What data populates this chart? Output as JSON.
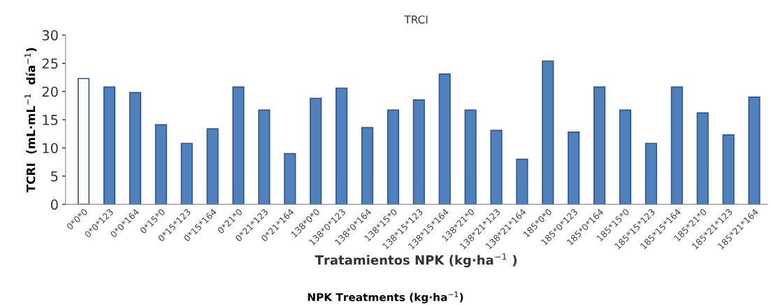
{
  "chart_data": {
    "type": "bar",
    "title": "TRCI",
    "xlabel": "Tratamientos NPK (kg·ha$^{−1}$ )",
    "ylabel": "TCRI  (mL·mL$^{−1}$  día$^{−1}$)",
    "annotations": [
      "NPK Treatments (kg·ha$^{−1}$)"
    ],
    "categories": [
      "0*0*0",
      "0*0*123",
      "0*0*164",
      "0*15*0",
      "0*15*123",
      "0*15*164",
      "0*21*0",
      "0*21*123",
      "0*21*164",
      "138*0*0",
      "138*0*123",
      "138*0*164",
      "138*15*0",
      "138*15*123",
      "138*15*164",
      "138*21*0",
      "138*21*123",
      "138*21*164",
      "185*0*0",
      "185*0*123",
      "185*0*164",
      "185*15*0",
      "185*15*123",
      "185*15*164",
      "185*21*0",
      "185*21*123",
      "185*21*164"
    ],
    "values": [
      22.3,
      20.8,
      19.8,
      14.1,
      10.8,
      13.4,
      20.8,
      16.7,
      9.0,
      18.8,
      20.6,
      13.6,
      16.7,
      18.5,
      23.1,
      16.7,
      13.1,
      8.0,
      25.4,
      12.8,
      20.8,
      16.7,
      10.8,
      20.8,
      16.2,
      12.3,
      19.0
    ],
    "colors": [
      "#ffffff",
      "#4f81bd",
      "#4f81bd",
      "#4f81bd",
      "#4f81bd",
      "#4f81bd",
      "#4f81bd",
      "#4f81bd",
      "#4f81bd",
      "#4f81bd",
      "#4f81bd",
      "#4f81bd",
      "#4f81bd",
      "#4f81bd",
      "#4f81bd",
      "#4f81bd",
      "#4f81bd",
      "#4f81bd",
      "#4f81bd",
      "#4f81bd",
      "#4f81bd",
      "#4f81bd",
      "#4f81bd",
      "#4f81bd",
      "#4f81bd",
      "#4f81bd",
      "#4f81bd"
    ],
    "ylim": [
      0,
      30
    ],
    "yticks": [
      0,
      5,
      10,
      15,
      20,
      25,
      30
    ],
    "grid": false,
    "legend": false
  }
}
